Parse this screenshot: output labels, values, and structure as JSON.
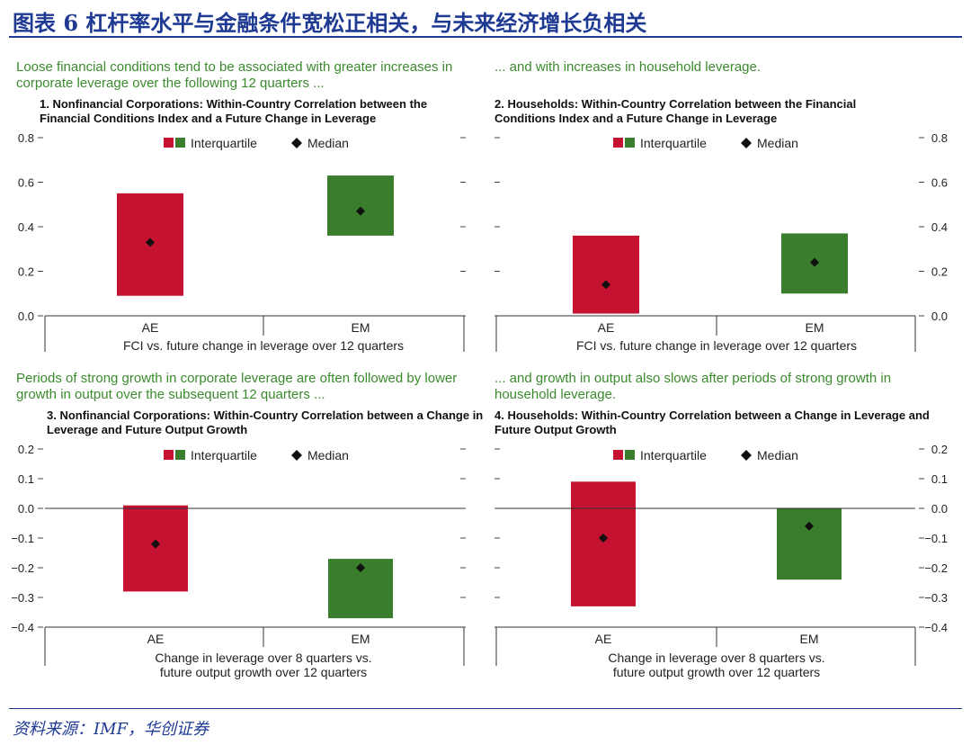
{
  "figure_title": "图表 6   杠杆率水平与金融条件宽松正相关，与未来经济增长负相关",
  "source": "资料来源：IMF，华创证券",
  "colors": {
    "red": "#C41230",
    "green": "#3A7D2C",
    "headline": "#3B8A2E",
    "brand": "#1F3A93"
  },
  "legend": {
    "interquartile": "Interquartile",
    "median": "Median"
  },
  "chart_data": [
    {
      "type": "bar",
      "headline": "Loose financial conditions tend to be associated with greater increases in corporate leverage over the following 12 quarters ...",
      "title": "1. Nonfinancial Corporations: Within-Country Correlation between the Financial Conditions Index and a Future Change in Leverage",
      "categories": [
        "AE",
        "EM"
      ],
      "xlabel": "FCI vs. future change in leverage over 12 quarters",
      "ylim": [
        0,
        0.8
      ],
      "yticks": [
        "0.0",
        "0.2",
        "0.4",
        "0.6",
        "0.8"
      ],
      "axis_side": "left",
      "series": [
        {
          "name": "Interquartile",
          "low": [
            0.09,
            0.36
          ],
          "high": [
            0.55,
            0.63
          ]
        },
        {
          "name": "Median",
          "values": [
            0.33,
            0.47
          ]
        }
      ]
    },
    {
      "type": "bar",
      "headline": "... and with increases in household leverage.",
      "title": "2. Households: Within-Country Correlation between the Financial Conditions Index and a Future Change in Leverage",
      "categories": [
        "AE",
        "EM"
      ],
      "xlabel": "FCI vs. future change in leverage over 12 quarters",
      "ylim": [
        0,
        0.8
      ],
      "yticks": [
        "0.0",
        "0.2",
        "0.4",
        "0.6",
        "0.8"
      ],
      "axis_side": "right",
      "series": [
        {
          "name": "Interquartile",
          "low": [
            0.01,
            0.1
          ],
          "high": [
            0.36,
            0.37
          ]
        },
        {
          "name": "Median",
          "values": [
            0.14,
            0.24
          ]
        }
      ]
    },
    {
      "type": "bar",
      "headline": "Periods of strong growth in corporate leverage are often followed by lower growth in output over the subsequent 12 quarters ...",
      "title": "3. Nonfinancial Corporations: Within-Country Correlation between a Change in Leverage and Future Output Growth",
      "categories": [
        "AE",
        "EM"
      ],
      "xlabel": "Change in leverage over 8 quarters vs. future output growth over 12 quarters",
      "ylim": [
        -0.4,
        0.2
      ],
      "yticks": [
        "0.2",
        "0.1",
        "0.0",
        "-0.1",
        "-0.2",
        "-0.3",
        "-0.4"
      ],
      "axis_side": "left",
      "series": [
        {
          "name": "Interquartile",
          "low": [
            -0.28,
            -0.37
          ],
          "high": [
            0.01,
            -0.17
          ]
        },
        {
          "name": "Median",
          "values": [
            -0.12,
            -0.2
          ]
        }
      ]
    },
    {
      "type": "bar",
      "headline": "... and growth in output also slows after periods of strong growth in household leverage.",
      "title": "4. Households: Within-Country Correlation between a Change in Leverage and Future Output Growth",
      "categories": [
        "AE",
        "EM"
      ],
      "xlabel": "Change in leverage over 8 quarters vs. future output growth over 12 quarters",
      "ylim": [
        -0.4,
        0.2
      ],
      "yticks": [
        "0.2",
        "0.1",
        "0.0",
        "-0.1",
        "-0.2",
        "-0.3",
        "-0.4"
      ],
      "axis_side": "right",
      "series": [
        {
          "name": "Interquartile",
          "low": [
            -0.33,
            -0.24
          ],
          "high": [
            0.09,
            0.0
          ]
        },
        {
          "name": "Median",
          "values": [
            -0.1,
            -0.06
          ]
        }
      ]
    }
  ]
}
